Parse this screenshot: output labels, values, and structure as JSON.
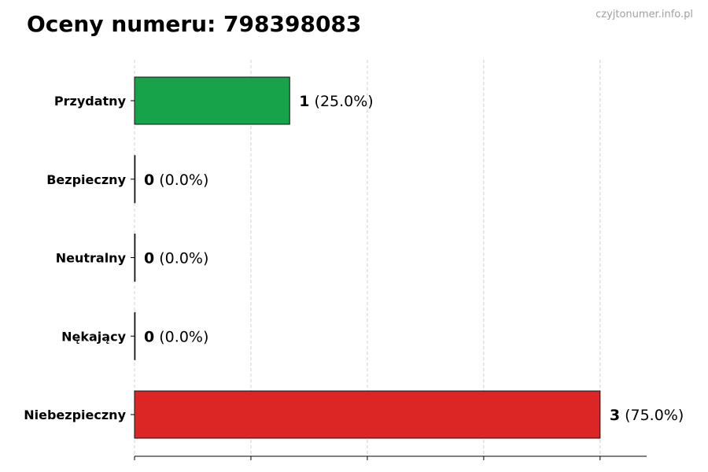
{
  "chart_data": {
    "type": "bar",
    "orientation": "horizontal",
    "title": "Oceny numeru: 798398083",
    "watermark": "czyjtonumer.info.pl",
    "categories": [
      "Przydatny",
      "Bezpieczny",
      "Neutralny",
      "Nękający",
      "Niebezpieczny"
    ],
    "values": [
      1,
      0,
      0,
      0,
      3
    ],
    "percent_labels": [
      "(25.0%)",
      "(0.0%)",
      "(0.0%)",
      "(0.0%)",
      "(75.0%)"
    ],
    "colors": [
      "#16a34a",
      "#6b7280",
      "#6b7280",
      "#6b7280",
      "#dc2626"
    ],
    "xlim": [
      0,
      3.3
    ],
    "xticks": [
      0,
      0.75,
      1.5,
      2.25,
      3
    ],
    "xtick_labels_shown": false,
    "grid": "vertical dashed",
    "xlabel": "",
    "ylabel": ""
  }
}
